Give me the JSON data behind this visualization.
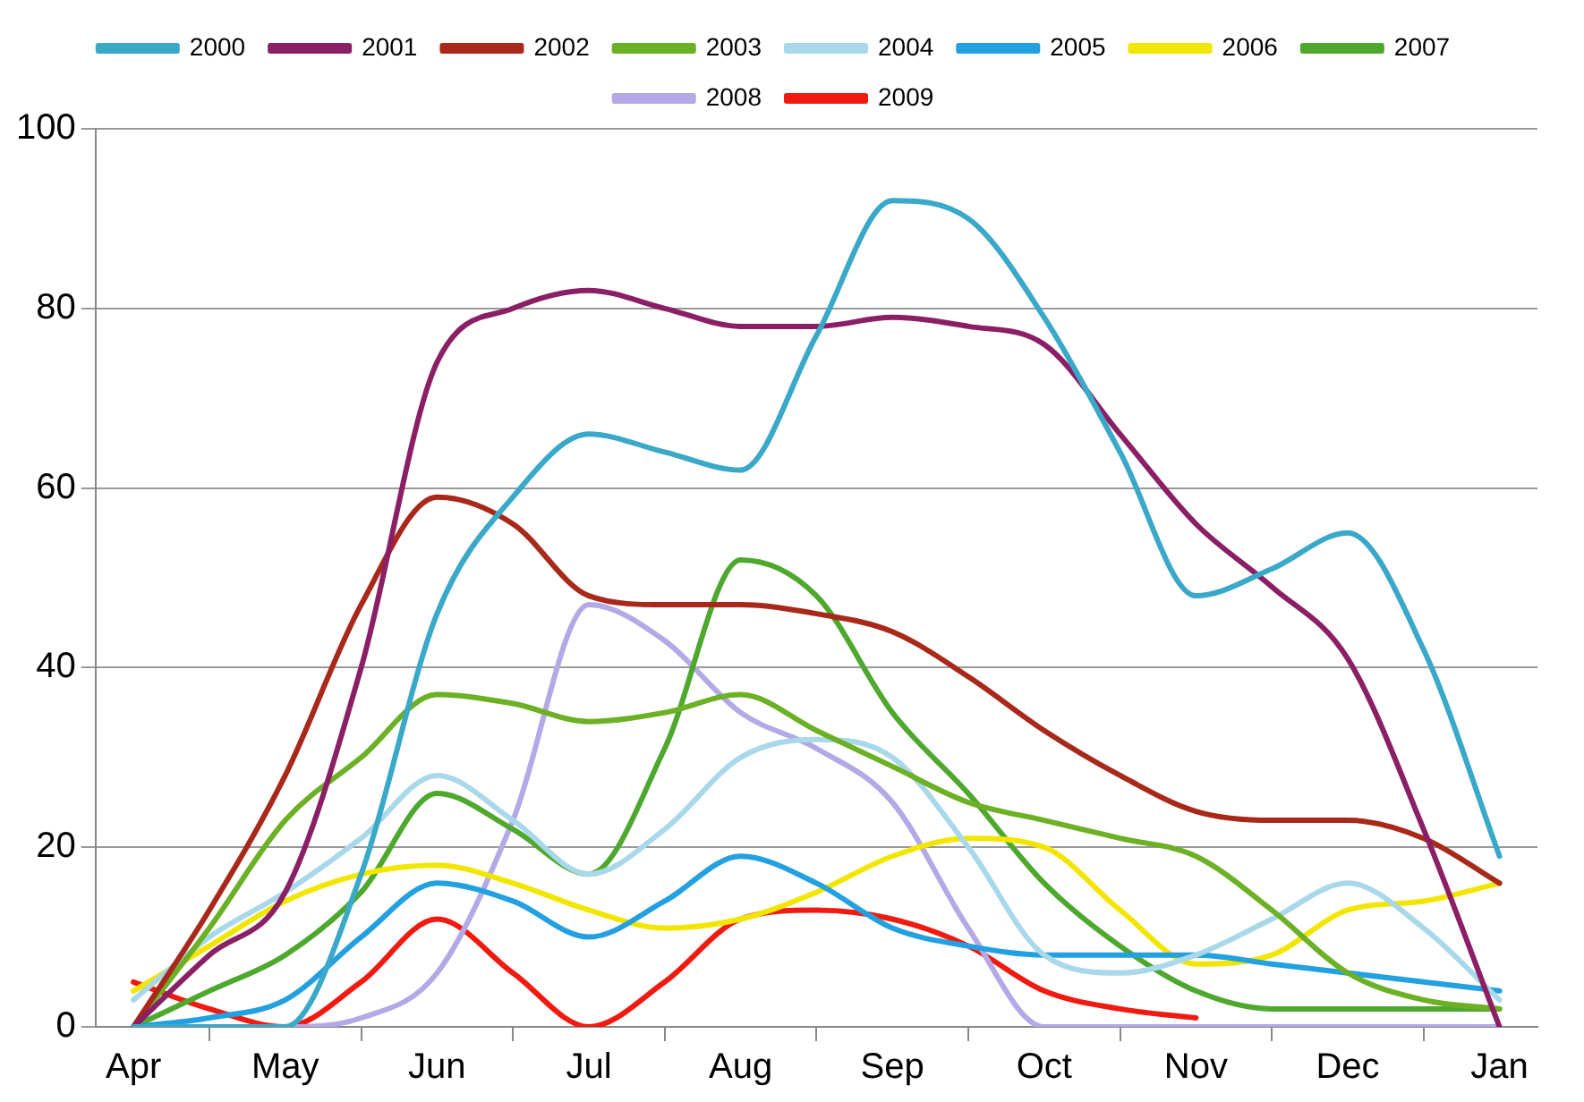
{
  "chart_data": {
    "type": "line",
    "categories": [
      "Apr",
      null,
      "May",
      null,
      "Jun",
      null,
      "Jul",
      null,
      "Aug",
      null,
      "Sep",
      null,
      "Oct",
      null,
      "Nov",
      null,
      "Dec",
      null,
      "Jan"
    ],
    "ylim": [
      0,
      100
    ],
    "yticks": [
      0,
      20,
      40,
      60,
      80,
      100
    ],
    "grid": "y",
    "legend": "top",
    "marker": "none",
    "line_style": "solid",
    "series": [
      {
        "name": "2000",
        "color": "#3aa8c8",
        "values": [
          0,
          0,
          0,
          17,
          46,
          59,
          66,
          64,
          62,
          77,
          92,
          90,
          79,
          64,
          48,
          51,
          55,
          42,
          19
        ]
      },
      {
        "name": "2001",
        "color": "#8b1f65",
        "values": [
          0,
          8,
          15,
          40,
          74,
          80,
          82,
          80,
          78,
          78,
          79,
          78,
          76,
          66,
          56,
          49,
          41,
          22,
          0
        ]
      },
      {
        "name": "2002",
        "color": "#a8281a",
        "values": [
          0,
          13,
          28,
          47,
          59,
          56,
          48,
          47,
          47,
          46,
          44,
          39,
          33,
          28,
          24,
          23,
          23,
          21,
          16
        ]
      },
      {
        "name": "2003",
        "color": "#6cb025",
        "values": [
          0,
          11,
          23,
          30,
          37,
          36,
          34,
          35,
          37,
          33,
          29,
          25,
          23,
          21,
          19,
          13,
          6,
          3,
          2
        ]
      },
      {
        "name": "2004",
        "color": "#a8d8ea",
        "values": [
          3,
          10,
          15,
          21,
          28,
          23,
          17,
          22,
          30,
          32,
          30,
          20,
          8,
          6,
          8,
          12,
          16,
          11,
          3
        ]
      },
      {
        "name": "2005",
        "color": "#22a0e0",
        "values": [
          0,
          1,
          3,
          10,
          16,
          14,
          10,
          14,
          19,
          16,
          11,
          9,
          8,
          8,
          8,
          7,
          6,
          5,
          4
        ]
      },
      {
        "name": "2006",
        "color": "#f2e600",
        "values": [
          4,
          9,
          14,
          17,
          18,
          16,
          13,
          11,
          12,
          15,
          19,
          21,
          20,
          13,
          7,
          8,
          13,
          14,
          16
        ]
      },
      {
        "name": "2007",
        "color": "#4ea82e",
        "values": [
          0,
          4,
          8,
          15,
          26,
          22,
          17,
          31,
          52,
          48,
          35,
          26,
          16,
          9,
          4,
          2,
          2,
          2,
          2
        ]
      },
      {
        "name": "2008",
        "color": "#b4a8e6",
        "values": [
          0,
          0,
          0,
          1,
          6,
          23,
          47,
          43,
          35,
          31,
          25,
          11,
          0,
          0,
          0,
          0,
          0,
          0,
          0
        ]
      },
      {
        "name": "2009",
        "color": "#f01a10",
        "values": [
          5,
          2,
          0,
          5,
          12,
          6,
          0,
          5,
          12,
          13,
          12,
          9,
          4,
          2,
          1,
          null,
          null,
          null,
          null
        ]
      }
    ]
  }
}
